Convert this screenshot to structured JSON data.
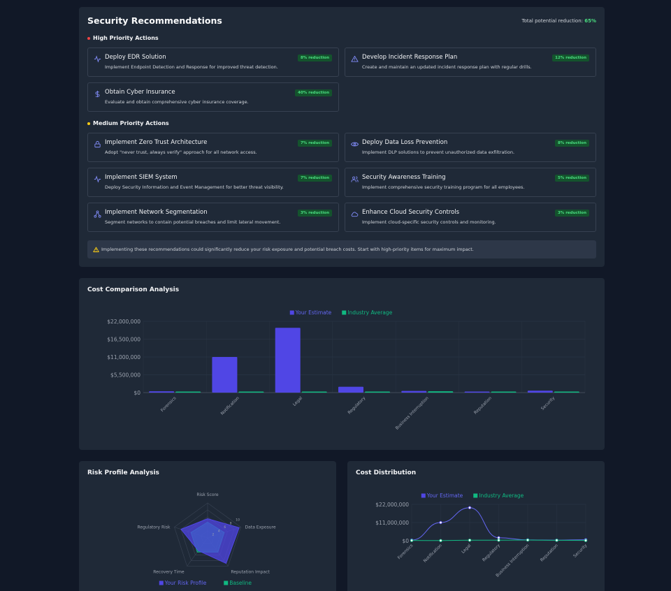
{
  "security": {
    "title": "Security Recommendations",
    "total_label": "Total potential reduction:",
    "total_value": "65%",
    "high": {
      "title": "High Priority Actions",
      "items": [
        {
          "title": "Deploy EDR Solution",
          "desc": "Implement Endpoint Detection and Response for improved threat detection.",
          "badge": "8% reduction",
          "icon": "activity-icon"
        },
        {
          "title": "Develop Incident Response Plan",
          "desc": "Create and maintain an updated incident response plan with regular drills.",
          "badge": "12% reduction",
          "icon": "alert-triangle-icon"
        },
        {
          "title": "Obtain Cyber Insurance",
          "desc": "Evaluate and obtain comprehensive cyber insurance coverage.",
          "badge": "40% reduction",
          "icon": "dollar-icon"
        }
      ]
    },
    "medium": {
      "title": "Medium Priority Actions",
      "items": [
        {
          "title": "Implement Zero Trust Architecture",
          "desc": "Adopt \"never trust, always verify\" approach for all network access.",
          "badge": "7% reduction",
          "icon": "lock-icon"
        },
        {
          "title": "Deploy Data Loss Prevention",
          "desc": "Implement DLP solutions to prevent unauthorized data exfiltration.",
          "badge": "8% reduction",
          "icon": "eye-icon"
        },
        {
          "title": "Implement SIEM System",
          "desc": "Deploy Security Information and Event Management for better threat visibility.",
          "badge": "7% reduction",
          "icon": "activity-icon"
        },
        {
          "title": "Security Awareness Training",
          "desc": "Implement comprehensive security training program for all employees.",
          "badge": "5% reduction",
          "icon": "users-icon"
        },
        {
          "title": "Implement Network Segmentation",
          "desc": "Segment networks to contain potential breaches and limit lateral movement.",
          "badge": "3% reduction",
          "icon": "network-icon"
        },
        {
          "title": "Enhance Cloud Security Controls",
          "desc": "Implement cloud-specific security controls and monitoring.",
          "badge": "3% reduction",
          "icon": "cloud-icon"
        }
      ]
    },
    "tip": "Implementing these recommendations could significantly reduce your risk exposure and potential breach costs. Start with high-priority items for maximum impact.",
    "colors": {
      "high": "#ef4444",
      "medium": "#facc15",
      "accent": "#818cf8",
      "badge_text": "#4ade80"
    }
  },
  "cost_title": "Cost Comparison Analysis",
  "risk_title": "Risk Profile Analysis",
  "dist_title": "Cost Distribution",
  "chart_data": [
    {
      "type": "bar",
      "title": "Cost Comparison Analysis",
      "categories": [
        "Forensics",
        "Notification",
        "Legal",
        "Regulatory",
        "Business Interruption",
        "Reputation",
        "Security"
      ],
      "series": [
        {
          "name": "Your Estimate",
          "color": "#5046e5",
          "values": [
            400000,
            11000000,
            20000000,
            1800000,
            500000,
            300000,
            600000
          ]
        },
        {
          "name": "Industry Average",
          "color": "#10b981",
          "values": [
            150000,
            100000,
            300000,
            300000,
            400000,
            250000,
            150000
          ]
        }
      ],
      "yticks": [
        "$0",
        "$5,500,000",
        "$11,000,000",
        "$16,500,000",
        "$22,000,000"
      ],
      "ylim": [
        0,
        22000000
      ],
      "legend": "top"
    },
    {
      "type": "radar",
      "title": "Risk Profile Analysis",
      "axes": [
        "Risk Score",
        "Data Exposure",
        "Reputation Impact",
        "Recovery Time",
        "Regulatory Risk"
      ],
      "series": [
        {
          "name": "Your Risk Profile",
          "color": "#5046e5",
          "values": [
            55,
            95,
            90,
            45,
            80
          ]
        },
        {
          "name": "Baseline",
          "color": "#10b981",
          "values": [
            45,
            50,
            50,
            50,
            50
          ]
        }
      ],
      "scale_labels": [
        "2",
        "4",
        "6",
        "8",
        "10"
      ],
      "legend": "bottom"
    },
    {
      "type": "line",
      "title": "Cost Distribution",
      "categories": [
        "Forensics",
        "Notification",
        "Legal",
        "Regulatory",
        "Business Interruption",
        "Reputation",
        "Security"
      ],
      "series": [
        {
          "name": "Your Estimate",
          "color": "#5046e5",
          "values": [
            400000,
            11000000,
            20000000,
            1800000,
            500000,
            300000,
            600000
          ]
        },
        {
          "name": "Industry Average",
          "color": "#10b981",
          "values": [
            150000,
            100000,
            300000,
            300000,
            400000,
            250000,
            150000
          ]
        }
      ],
      "yticks": [
        "$0",
        "$11,000,000",
        "$22,000,000"
      ],
      "ylim": [
        0,
        22000000
      ],
      "legend": "top"
    }
  ]
}
